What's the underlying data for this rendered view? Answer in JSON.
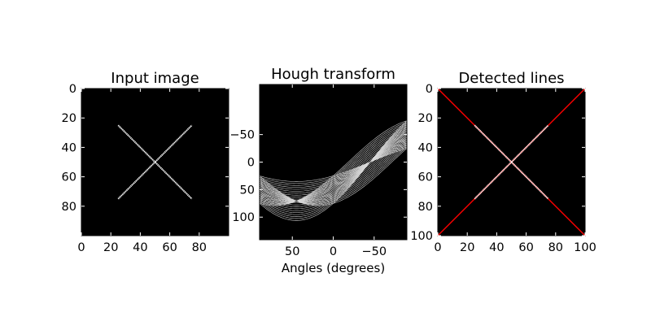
{
  "chart_data": [
    {
      "type": "image",
      "title": "Input image",
      "xlim": [
        0,
        100
      ],
      "ylim": [
        100,
        0
      ],
      "xticks": [
        0,
        20,
        40,
        60,
        80
      ],
      "yticks": [
        0,
        20,
        40,
        60,
        80
      ],
      "background": "#000000",
      "lines": [
        {
          "x": [
            25,
            75
          ],
          "y": [
            25,
            75
          ],
          "color": "#ffffff"
        },
        {
          "x": [
            25,
            75
          ],
          "y": [
            75,
            25
          ],
          "color": "#ffffff"
        }
      ]
    },
    {
      "type": "heatmap",
      "title": "Hough transform",
      "xlabel": "Angles (degrees)",
      "xlim": [
        90,
        -90
      ],
      "ylim": [
        141,
        -141
      ],
      "xticks": [
        50,
        0,
        -50
      ],
      "yticks": [
        -50,
        0,
        50,
        100
      ],
      "background": "#000000",
      "band_color": "#ffffff",
      "peaks": [
        {
          "angle": 45,
          "distance": 0
        },
        {
          "angle": -45,
          "distance": 70.7
        }
      ]
    },
    {
      "type": "image",
      "title": "Detected lines",
      "xlim": [
        0,
        100
      ],
      "ylim": [
        100,
        0
      ],
      "xticks": [
        0,
        20,
        40,
        60,
        80,
        100
      ],
      "yticks": [
        0,
        20,
        40,
        60,
        80,
        100
      ],
      "background": "#000000",
      "lines": [
        {
          "x": [
            25,
            75
          ],
          "y": [
            25,
            75
          ],
          "color": "#ffffff"
        },
        {
          "x": [
            25,
            75
          ],
          "y": [
            75,
            25
          ],
          "color": "#ffffff"
        }
      ],
      "detected_lines": [
        {
          "x": [
            0,
            100
          ],
          "y": [
            0,
            100
          ],
          "color": "#ff0000"
        },
        {
          "x": [
            0,
            100
          ],
          "y": [
            100,
            0
          ],
          "color": "#ff0000"
        }
      ]
    }
  ]
}
